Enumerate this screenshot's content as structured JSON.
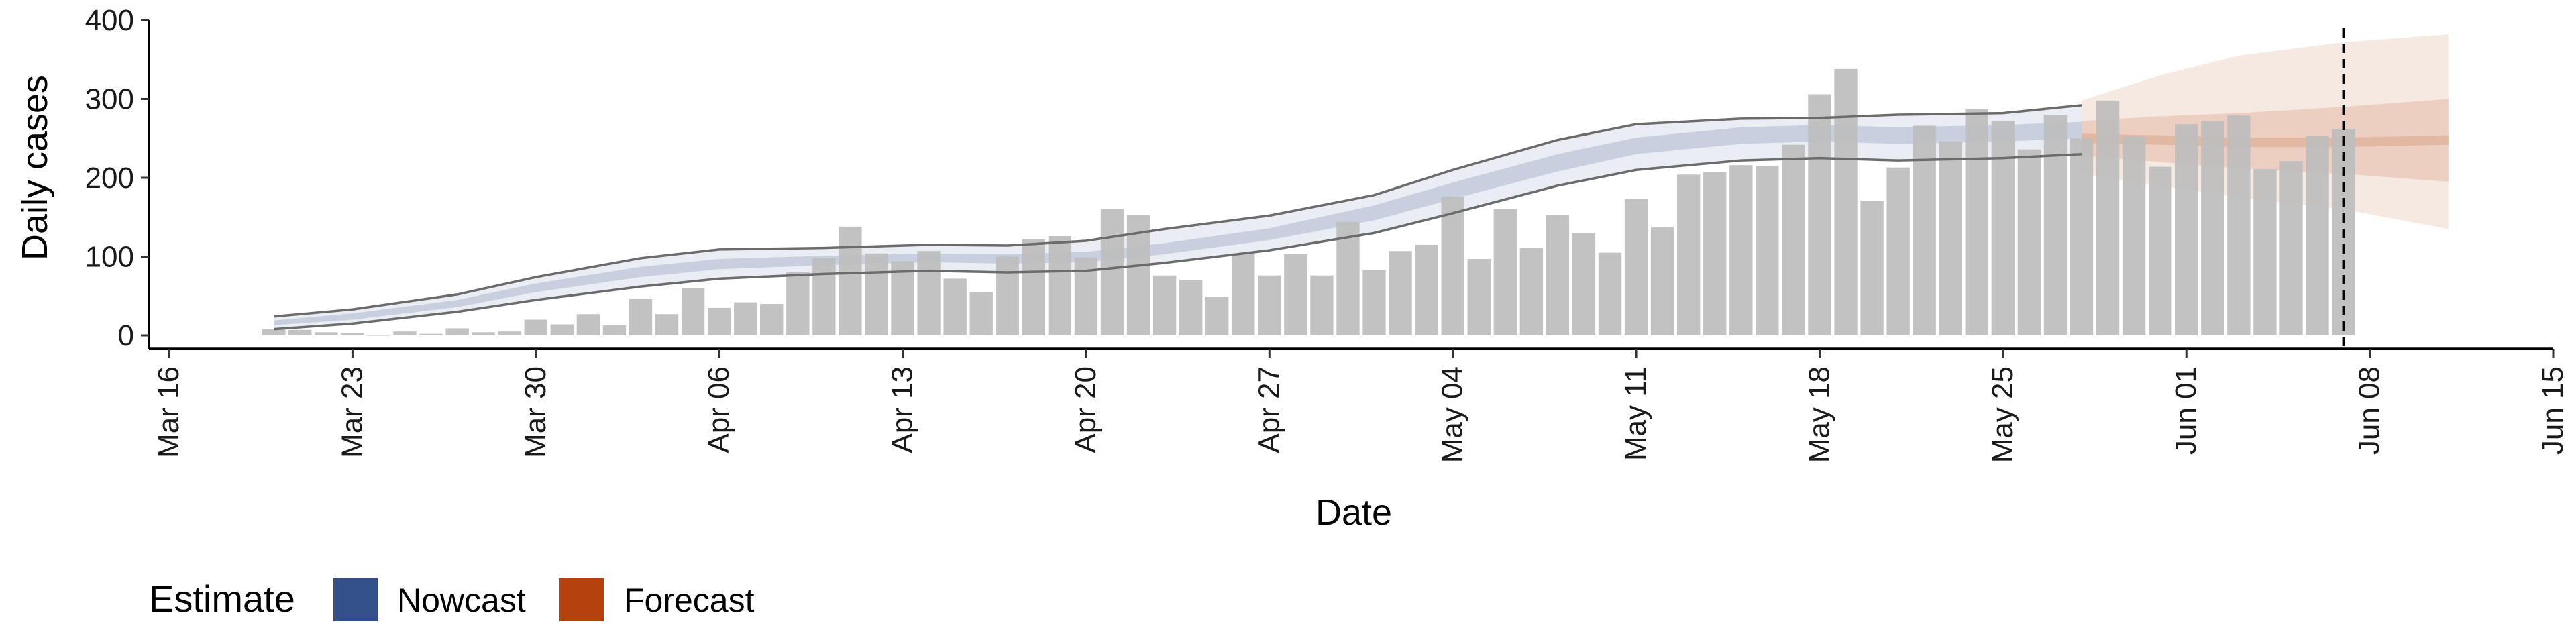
{
  "chart_data": {
    "type": "bar",
    "xlabel": "Date",
    "ylabel": "Daily cases",
    "ylim": [
      0,
      400
    ],
    "yticks": [
      0,
      100,
      200,
      300,
      400
    ],
    "xlim": [
      "2020-03-16",
      "2020-06-15"
    ],
    "xticks": [
      {
        "date": "2020-03-16",
        "label": "Mar 16"
      },
      {
        "date": "2020-03-23",
        "label": "Mar 23"
      },
      {
        "date": "2020-03-30",
        "label": "Mar 30"
      },
      {
        "date": "2020-04-06",
        "label": "Apr 06"
      },
      {
        "date": "2020-04-13",
        "label": "Apr 13"
      },
      {
        "date": "2020-04-20",
        "label": "Apr 20"
      },
      {
        "date": "2020-04-27",
        "label": "Apr 27"
      },
      {
        "date": "2020-05-04",
        "label": "May 04"
      },
      {
        "date": "2020-05-11",
        "label": "May 11"
      },
      {
        "date": "2020-05-18",
        "label": "May 18"
      },
      {
        "date": "2020-05-25",
        "label": "May 25"
      },
      {
        "date": "2020-06-01",
        "label": "Jun 01"
      },
      {
        "date": "2020-06-08",
        "label": "Jun 08"
      },
      {
        "date": "2020-06-15",
        "label": "Jun 15"
      }
    ],
    "forecast_date": "2020-06-07",
    "grid": false,
    "legend": {
      "title": "Estimate",
      "position": "bottom-left",
      "items": [
        {
          "label": "Nowcast",
          "color": "#34508a"
        },
        {
          "label": "Forecast",
          "color": "#b5410f"
        }
      ]
    },
    "colors": {
      "bars": "#bdbdbd",
      "nowcast": "#34508a",
      "forecast": "#c9744a",
      "ci_lines": "#6b6b6b",
      "forecast_line": "#000000"
    },
    "cases": {
      "start": "2020-03-20",
      "values": [
        8,
        7,
        4,
        3,
        0,
        5,
        2,
        9,
        4,
        5,
        20,
        14,
        27,
        13,
        46,
        27,
        60,
        35,
        42,
        40,
        80,
        98,
        138,
        104,
        94,
        107,
        72,
        55,
        100,
        122,
        126,
        99,
        160,
        153,
        76,
        70,
        49,
        104,
        76,
        103,
        76,
        144,
        83,
        107,
        115,
        176,
        97,
        160,
        111,
        153,
        130,
        105,
        173,
        137,
        204,
        207,
        216,
        215,
        242,
        306,
        338,
        171,
        213,
        266,
        246,
        287,
        272,
        236,
        280,
        250,
        298,
        253,
        214,
        268,
        272,
        279,
        211,
        221,
        253,
        262
      ]
    },
    "nowcast": {
      "dates": [
        "2020-03-20",
        "2020-03-23",
        "2020-03-27",
        "2020-03-30",
        "2020-04-03",
        "2020-04-06",
        "2020-04-10",
        "2020-04-14",
        "2020-04-17",
        "2020-04-20",
        "2020-04-23",
        "2020-04-27",
        "2020-05-01",
        "2020-05-04",
        "2020-05-08",
        "2020-05-11",
        "2020-05-15",
        "2020-05-18",
        "2020-05-21",
        "2020-05-25",
        "2020-05-28"
      ],
      "lower_90": [
        8,
        15,
        30,
        45,
        62,
        72,
        78,
        82,
        80,
        82,
        92,
        108,
        130,
        155,
        190,
        210,
        222,
        225,
        222,
        225,
        230
      ],
      "lower_50": [
        13,
        20,
        36,
        55,
        74,
        84,
        89,
        93,
        91,
        93,
        103,
        121,
        146,
        173,
        208,
        230,
        243,
        246,
        243,
        246,
        250
      ],
      "median": [
        16,
        24,
        40,
        60,
        80,
        90,
        95,
        98,
        97,
        99,
        110,
        128,
        155,
        183,
        218,
        240,
        253,
        256,
        253,
        256,
        260
      ],
      "upper_50": [
        19,
        28,
        45,
        66,
        87,
        97,
        101,
        104,
        103,
        106,
        117,
        136,
        165,
        194,
        230,
        251,
        264,
        267,
        264,
        267,
        271
      ],
      "upper_90": [
        24,
        33,
        52,
        74,
        98,
        109,
        111,
        115,
        114,
        120,
        135,
        152,
        178,
        210,
        248,
        268,
        275,
        276,
        280,
        282,
        292
      ]
    },
    "forecast": {
      "dates": [
        "2020-05-28",
        "2020-05-31",
        "2020-06-03",
        "2020-06-07",
        "2020-06-11"
      ],
      "lower_90": [
        205,
        190,
        175,
        160,
        135
      ],
      "lower_50": [
        228,
        220,
        212,
        205,
        195
      ],
      "median": [
        250,
        248,
        245,
        245,
        248
      ],
      "upper_50": [
        272,
        278,
        282,
        290,
        300
      ],
      "upper_90": [
        298,
        330,
        355,
        372,
        382
      ]
    }
  }
}
